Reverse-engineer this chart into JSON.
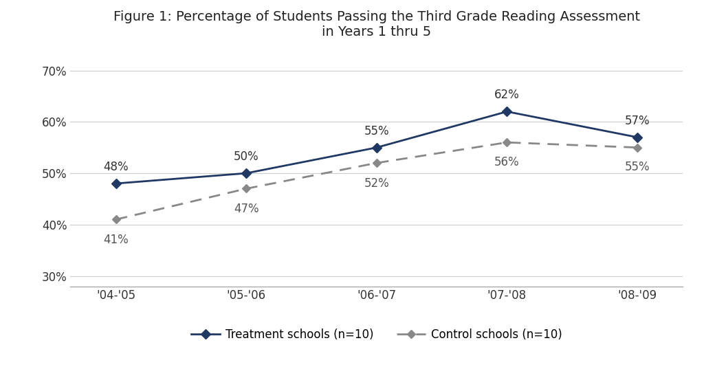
{
  "title": "Figure 1: Percentage of Students Passing the Third Grade Reading Assessment\nin Years 1 thru 5",
  "x_labels": [
    "'04-'05",
    "'05-'06",
    "'06-'07",
    "'07-'08",
    "'08-'09"
  ],
  "treatment_values": [
    0.48,
    0.5,
    0.55,
    0.62,
    0.57
  ],
  "control_values": [
    0.41,
    0.47,
    0.52,
    0.56,
    0.55
  ],
  "treatment_labels": [
    "48%",
    "50%",
    "55%",
    "62%",
    "57%"
  ],
  "control_labels": [
    "41%",
    "47%",
    "52%",
    "56%",
    "55%"
  ],
  "treatment_color": "#1f3864",
  "control_color": "#888888",
  "ylim": [
    0.28,
    0.73
  ],
  "yticks": [
    0.3,
    0.4,
    0.5,
    0.6,
    0.7
  ],
  "ytick_labels": [
    "30%",
    "40%",
    "50%",
    "60%",
    "70%"
  ],
  "legend_treatment": "Treatment schools (n=10)",
  "legend_control": "Control schools (n=10)",
  "title_fontsize": 14,
  "label_fontsize": 12,
  "tick_fontsize": 12,
  "legend_fontsize": 12,
  "background_color": "#ffffff",
  "plot_bg_color": "#ffffff"
}
